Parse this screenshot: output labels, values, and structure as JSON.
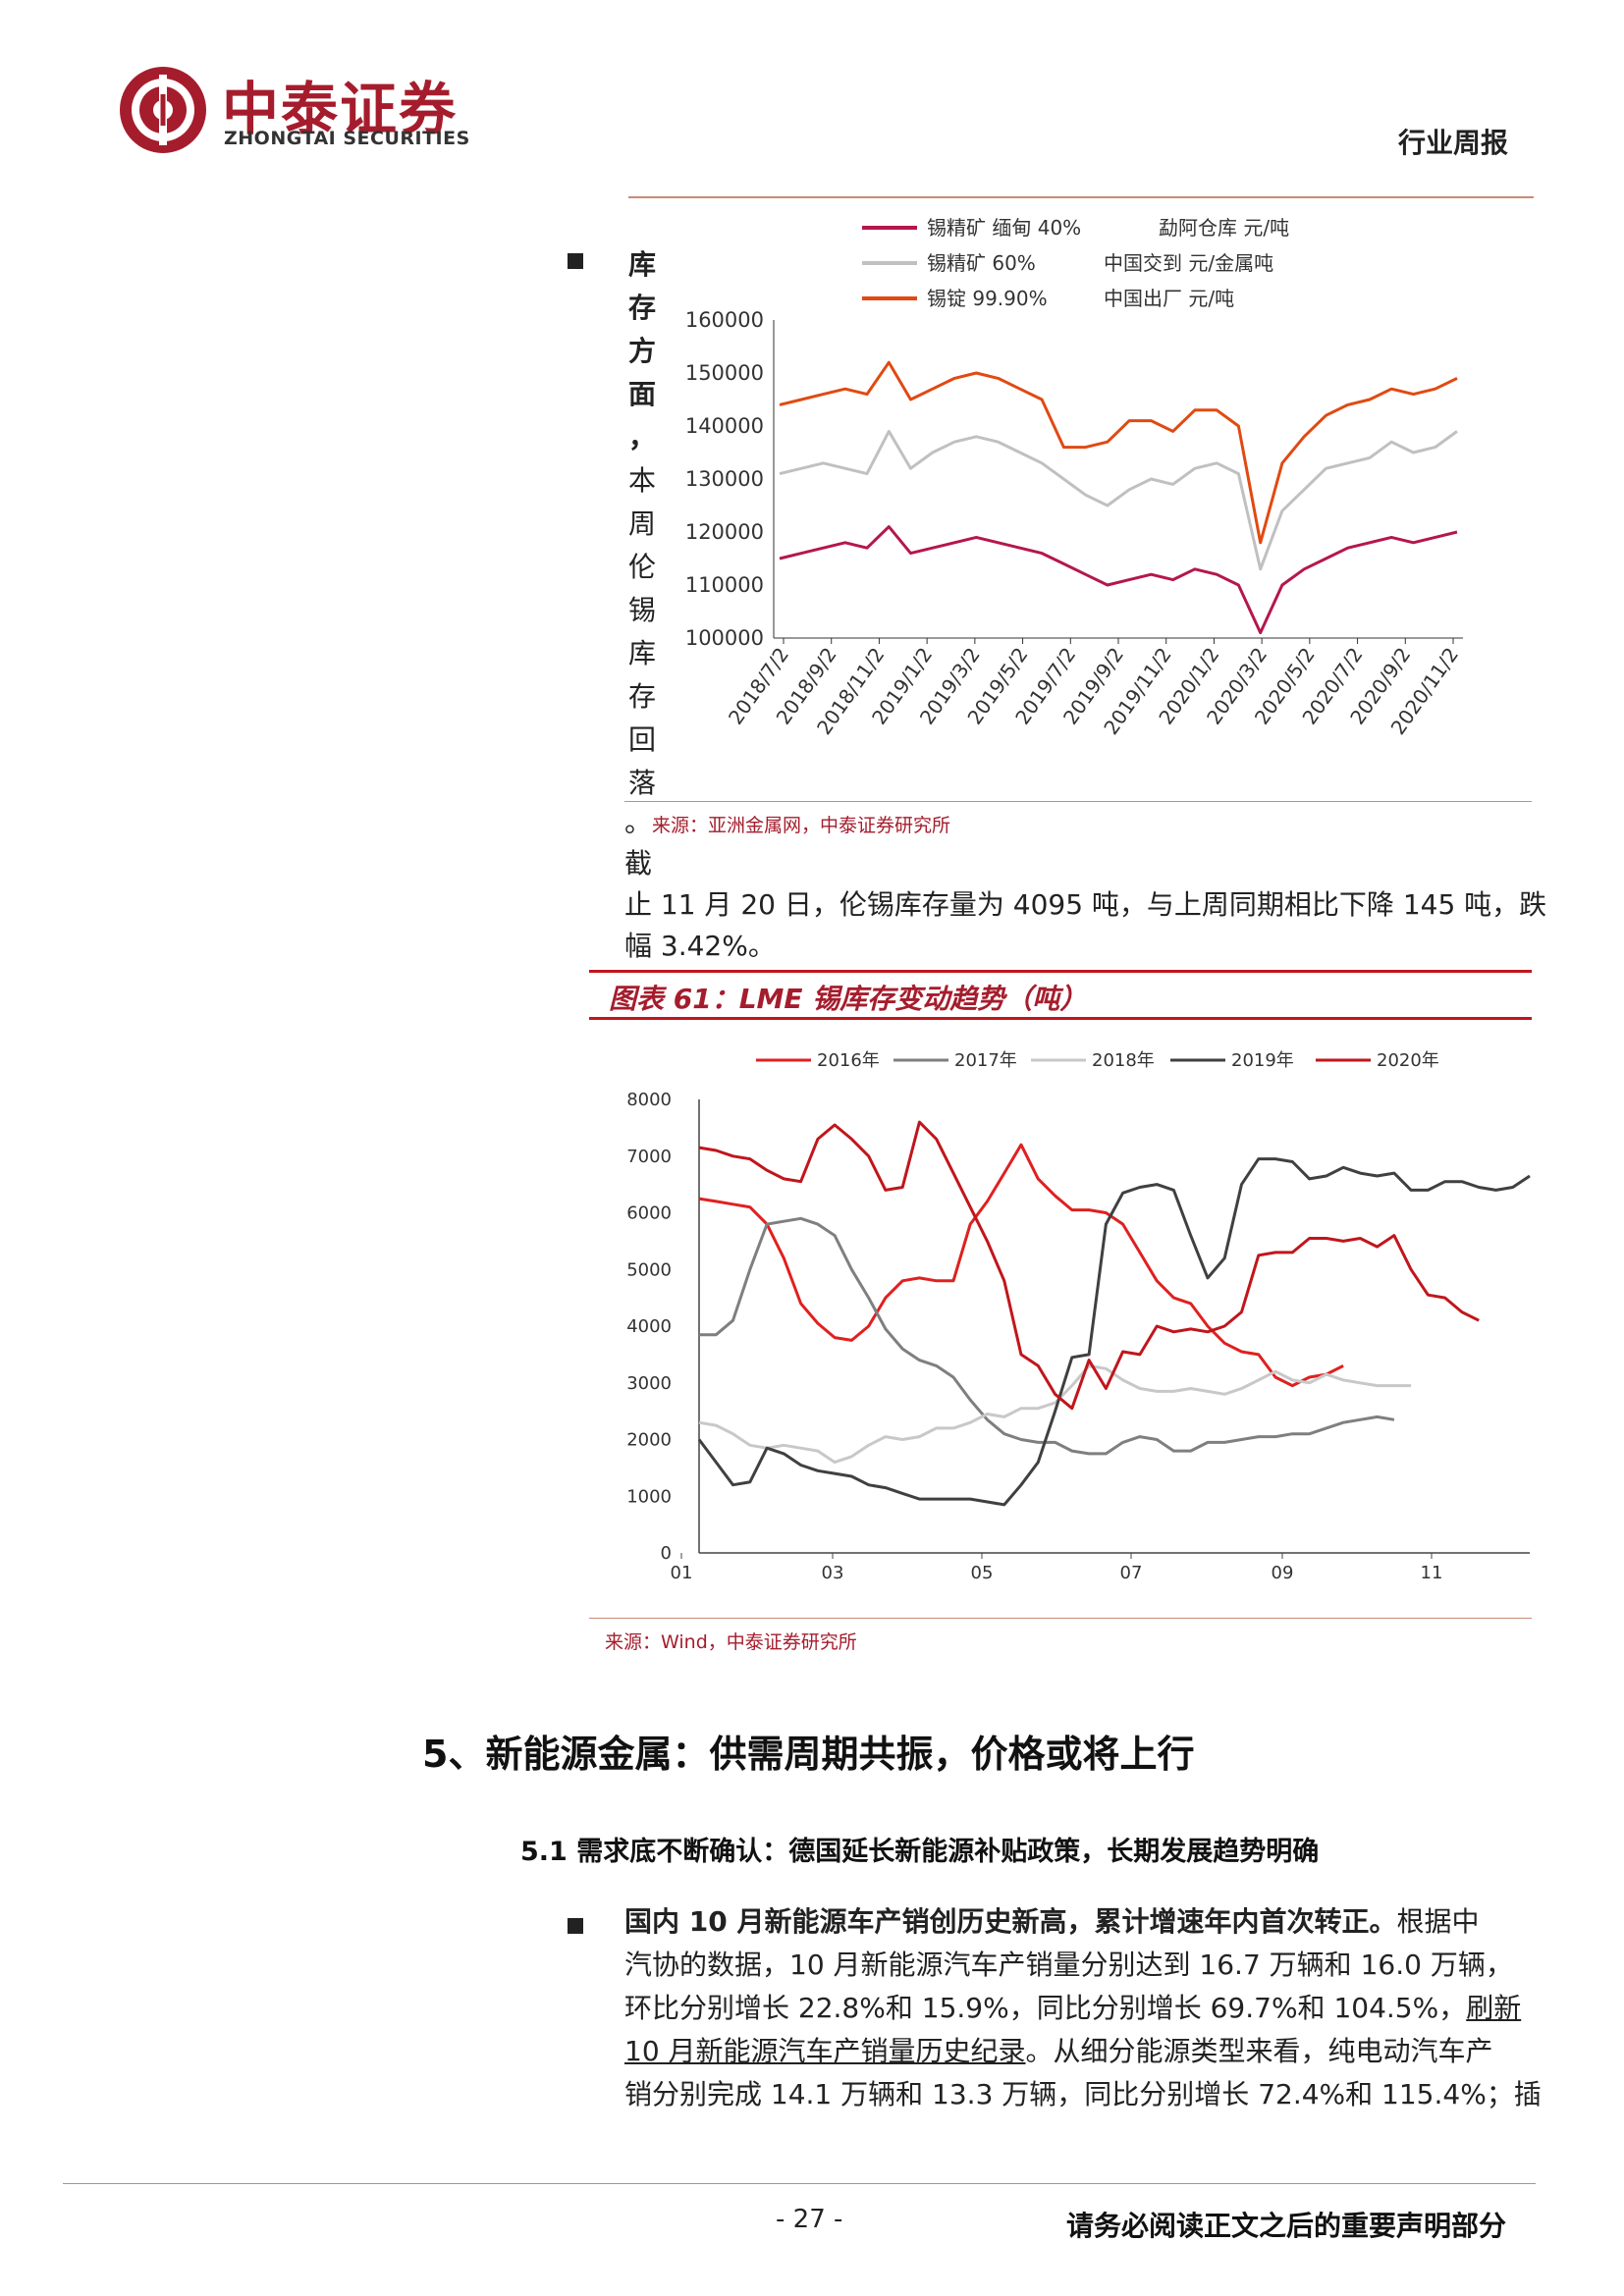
{
  "header": {
    "logo_cn": "中泰证券",
    "logo_en": "ZHONGTAI SECURITIES",
    "report_type": "行业周报"
  },
  "chart_tin_price": {
    "chart_data": {
      "type": "line",
      "legend": [
        {
          "name": "锡精矿 缅甸 40%",
          "suffix": "勐阿仓库 元/吨",
          "color": "#b5174a"
        },
        {
          "name": "锡精矿 60%",
          "suffix": "中国交到 元/金属吨",
          "color": "#c0c0c0"
        },
        {
          "name": "锡锭 99.90%",
          "suffix": "中国出厂 元/吨",
          "color": "#e04a12"
        }
      ],
      "y_ticks": [
        "160000",
        "150000",
        "140000",
        "130000",
        "120000",
        "110000",
        "100000"
      ],
      "ylim": [
        100000,
        160000
      ],
      "x_ticks": [
        "2018/7/2",
        "2018/9/2",
        "2018/11/2",
        "2019/1/2",
        "2019/3/2",
        "2019/5/2",
        "2019/7/2",
        "2019/9/2",
        "2019/11/2",
        "2020/1/2",
        "2020/3/2",
        "2020/5/2",
        "2020/7/2",
        "2020/9/2",
        "2020/11/2"
      ],
      "series": [
        {
          "name": "锡精矿 缅甸 40%",
          "color": "#b5174a",
          "values": [
            115000,
            116000,
            117000,
            118000,
            117000,
            121000,
            116000,
            117000,
            118000,
            119000,
            118000,
            117000,
            116000,
            114000,
            112000,
            110000,
            111000,
            112000,
            111000,
            113000,
            112000,
            110000,
            101000,
            110000,
            113000,
            115000,
            117000,
            118000,
            119000,
            118000,
            119000,
            120000
          ]
        },
        {
          "name": "锡精矿 60%",
          "color": "#c0c0c0",
          "values": [
            131000,
            132000,
            133000,
            132000,
            131000,
            139000,
            132000,
            135000,
            137000,
            138000,
            137000,
            135000,
            133000,
            130000,
            127000,
            125000,
            128000,
            130000,
            129000,
            132000,
            133000,
            131000,
            113000,
            124000,
            128000,
            132000,
            133000,
            134000,
            137000,
            135000,
            136000,
            139000
          ]
        },
        {
          "name": "锡锭 99.90%",
          "color": "#e04a12",
          "values": [
            144000,
            145000,
            146000,
            147000,
            146000,
            152000,
            145000,
            147000,
            149000,
            150000,
            149000,
            147000,
            145000,
            136000,
            136000,
            137000,
            141000,
            141000,
            139000,
            143000,
            143000,
            140000,
            118000,
            133000,
            138000,
            142000,
            144000,
            145000,
            147000,
            146000,
            147000,
            149000
          ]
        }
      ]
    }
  },
  "bullet1": {
    "vertical_heading": [
      "库",
      "存",
      "方",
      "面",
      "，",
      "本",
      "周",
      "伦",
      "锡",
      "库",
      "存",
      "回",
      "落"
    ],
    "continuation_1": "。",
    "source": "来源：亚洲金属网，中泰证券研究所",
    "continuation_2": "截",
    "line_a": "止 11 月 20 日，伦锡库存量为 4095 吨，与上周同期相比下降 145 吨，跌",
    "line_b": "幅 3.42%。"
  },
  "figure61": {
    "title": "图表 61：LME 锡库存变动趋势（吨）",
    "source": "来源：Wind，中泰证券研究所",
    "chart_data": {
      "type": "line",
      "ylim": [
        0,
        8000
      ],
      "y_ticks": [
        "8000",
        "7000",
        "6000",
        "5000",
        "4000",
        "3000",
        "2000",
        "1000",
        "0"
      ],
      "x_ticks": [
        "01",
        "03",
        "05",
        "07",
        "09",
        "11"
      ],
      "series": [
        {
          "name": "2016年",
          "color": "#e02020",
          "values": [
            6250,
            6200,
            6150,
            6100,
            5800,
            5200,
            4400,
            4050,
            3800,
            3750,
            4000,
            4500,
            4800,
            4850,
            4800,
            4800,
            5800,
            6200,
            6700,
            7200,
            6600,
            6300,
            6050,
            6050,
            6000,
            5800,
            5300,
            4800,
            4500,
            4400,
            4000,
            3700,
            3550,
            3500,
            3100,
            2950,
            3100,
            3150,
            3300
          ]
        },
        {
          "name": "2017年",
          "color": "#7f7f7f",
          "values": [
            3850,
            3850,
            4100,
            5000,
            5800,
            5850,
            5900,
            5800,
            5600,
            5000,
            4500,
            3950,
            3600,
            3400,
            3300,
            3100,
            2700,
            2350,
            2100,
            2000,
            1950,
            1950,
            1800,
            1750,
            1750,
            1950,
            2050,
            2000,
            1800,
            1800,
            1950,
            1950,
            2000,
            2050,
            2050,
            2100,
            2100,
            2200,
            2300,
            2350,
            2400,
            2350
          ]
        },
        {
          "name": "2018年",
          "color": "#c8c8c8",
          "values": [
            2300,
            2250,
            2100,
            1900,
            1850,
            1900,
            1850,
            1800,
            1600,
            1700,
            1900,
            2050,
            2000,
            2050,
            2200,
            2200,
            2300,
            2450,
            2400,
            2550,
            2550,
            2650,
            2950,
            3300,
            3250,
            3050,
            2900,
            2850,
            2850,
            2900,
            2850,
            2800,
            2900,
            3050,
            3200,
            3050,
            3000,
            3150,
            3050,
            3000,
            2950,
            2950,
            2950
          ]
        },
        {
          "name": "2019年",
          "color": "#404040",
          "values": [
            2000,
            1600,
            1200,
            1250,
            1850,
            1750,
            1550,
            1450,
            1400,
            1350,
            1200,
            1150,
            1050,
            950,
            950,
            950,
            950,
            900,
            850,
            1200,
            1600,
            2500,
            3450,
            3500,
            5800,
            6350,
            6450,
            6500,
            6400,
            5600,
            4850,
            5200,
            6500,
            6950,
            6950,
            6900,
            6600,
            6650,
            6800,
            6700,
            6650,
            6700,
            6400,
            6400,
            6550,
            6550,
            6450,
            6400,
            6450,
            6650
          ]
        },
        {
          "name": "2020年",
          "color": "#c0161c",
          "values": [
            7150,
            7100,
            7000,
            6950,
            6750,
            6600,
            6550,
            7300,
            7550,
            7300,
            7000,
            6400,
            6450,
            7600,
            7300,
            6700,
            6100,
            5500,
            4800,
            3500,
            3300,
            2800,
            2550,
            3400,
            2900,
            3550,
            3500,
            4000,
            3900,
            3950,
            3900,
            4000,
            4250,
            5250,
            5300,
            5300,
            5550,
            5550,
            5500,
            5550,
            5400,
            5600,
            5000,
            4550,
            4500,
            4250,
            4100
          ]
        }
      ]
    }
  },
  "section5": {
    "title": "5、新能源金属：供需周期共振，价格或将上行",
    "subtitle": "5.1 需求底不断确认：德国延长新能源补贴政策，长期发展趋势明确",
    "bullet_bold": "国内 10 月新能源车产销创历史新高，累计增速年内首次转正。",
    "bullet_rest_1": "根据中",
    "line2": "汽协的数据，10 月新能源汽车产销量分别达到 16.7 万辆和 16.0 万辆，",
    "line3_a": "环比分别增长 22.8%和 15.9%，同比分别增长 69.7%和 104.5%，",
    "line3_b": "刷新",
    "line4_a": "10 月新能源汽车产销量历史纪录",
    "line4_b": "。从细分能源类型来看，纯电动汽车产",
    "line5": "销分别完成 14.1 万辆和 13.3 万辆，同比分别增长 72.4%和 115.4%；插"
  },
  "footer": {
    "page": "- 27 -",
    "disclaimer": "请务必阅读正文之后的重要声明部分"
  }
}
